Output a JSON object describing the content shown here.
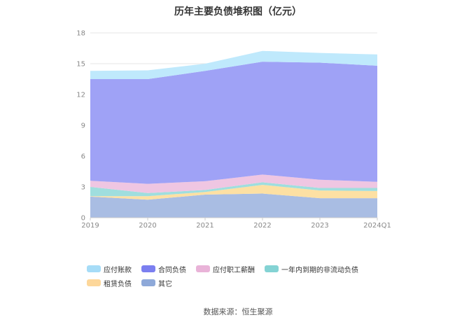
{
  "chart_data": {
    "type": "area",
    "stacked": true,
    "title": "历年主要负债堆积图（亿元）",
    "categories": [
      "2019",
      "2020",
      "2021",
      "2022",
      "2023",
      "2024Q1"
    ],
    "yticks": [
      "0",
      "3",
      "6",
      "9",
      "12",
      "15",
      "18"
    ],
    "ylim": [
      0,
      18
    ],
    "grid": true,
    "legend_position": "bottom",
    "series": [
      {
        "name": "其它",
        "color": "#a9bde3",
        "values": [
          2.05,
          1.75,
          2.25,
          2.35,
          1.9,
          1.9
        ]
      },
      {
        "name": "租赁负债",
        "color": "#fde0a3",
        "values": [
          0.05,
          0.35,
          0.25,
          0.85,
          0.75,
          0.7
        ]
      },
      {
        "name": "一年内到期的非流动负债",
        "color": "#9fdede",
        "values": [
          0.9,
          0.3,
          0.2,
          0.25,
          0.25,
          0.3
        ]
      },
      {
        "name": "应付职工薪酬",
        "color": "#efc6e2",
        "values": [
          0.6,
          0.9,
          0.85,
          0.75,
          0.8,
          0.6
        ]
      },
      {
        "name": "合同负债",
        "color": "#9fa2f6",
        "values": [
          9.9,
          10.2,
          10.75,
          11.0,
          11.4,
          11.3
        ]
      },
      {
        "name": "应付账款",
        "color": "#bfe9fc",
        "values": [
          0.8,
          0.85,
          0.7,
          1.05,
          0.95,
          1.1
        ]
      }
    ],
    "legend_order": [
      "应付账款",
      "合同负债",
      "应付职工薪酬",
      "一年内到期的非流动负债",
      "租赁负债",
      "其它"
    ]
  },
  "legend": [
    {
      "label": "应付账款",
      "color": "#a6dcf7"
    },
    {
      "label": "合同负债",
      "color": "#7b7ff0"
    },
    {
      "label": "应付职工薪酬",
      "color": "#e9b3d8"
    },
    {
      "label": "一年内到期的非流动负债",
      "color": "#84d3d4"
    },
    {
      "label": "租赁负债",
      "color": "#fdd79a"
    },
    {
      "label": "其它",
      "color": "#8ea9d9"
    }
  ],
  "footer": {
    "source": "数据来源：恒生聚源"
  }
}
